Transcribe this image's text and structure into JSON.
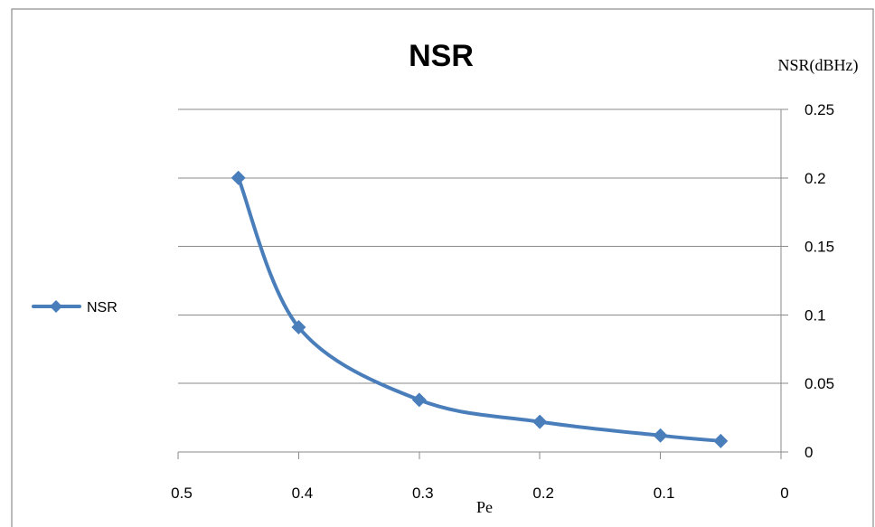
{
  "chart_data": {
    "type": "line",
    "title": "NSR",
    "xlabel": "Pe",
    "ylabel": "NSR(dBHz)",
    "x": [
      0.45,
      0.4,
      0.3,
      0.2,
      0.1,
      0.05
    ],
    "series": [
      {
        "name": "NSR",
        "values": [
          0.2,
          0.091,
          0.038,
          0.022,
          0.012,
          0.008
        ],
        "color": "#4a7ebb"
      }
    ],
    "xlim": [
      0.5,
      0
    ],
    "ylim": [
      0,
      0.25
    ],
    "x_ticks": [
      "0.5",
      "0.4",
      "0.3",
      "0.2",
      "0.1",
      "0"
    ],
    "y_ticks": [
      "0",
      "0.05",
      "0.1",
      "0.15",
      "0.2",
      "0.25"
    ],
    "x_reversed": true,
    "y_axis_side": "right",
    "grid": "horizontal",
    "smooth": true,
    "marker": "diamond",
    "legend": {
      "position": "left",
      "entries": [
        "NSR"
      ]
    }
  }
}
